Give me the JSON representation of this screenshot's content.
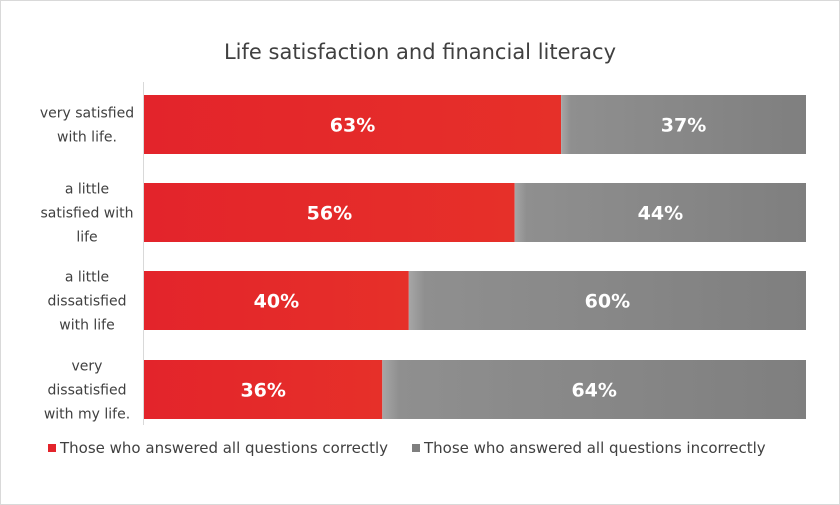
{
  "chart_data": {
    "type": "bar",
    "orientation": "horizontal",
    "stacked": "percent",
    "title": "Life satisfaction and financial literacy",
    "categories": [
      [
        "very satisfied",
        "with life."
      ],
      [
        "a little",
        "satisfied with",
        "life"
      ],
      [
        "a little",
        "dissatisfied",
        "with life"
      ],
      [
        "very",
        "dissatisfied",
        "with my life."
      ]
    ],
    "series": [
      {
        "name": "Those who answered all questions correctly",
        "color": "#e3242b",
        "values": [
          63,
          56,
          40,
          36
        ],
        "labels": [
          "63%",
          "56%",
          "40%",
          "36%"
        ]
      },
      {
        "name": "Those who answered all questions incorrectly",
        "color": "#7f7f7f",
        "values": [
          37,
          44,
          60,
          64
        ],
        "labels": [
          "37%",
          "44%",
          "60%",
          "64%"
        ]
      }
    ],
    "xlim": [
      0,
      100
    ],
    "grid": false,
    "legend_position": "bottom"
  }
}
